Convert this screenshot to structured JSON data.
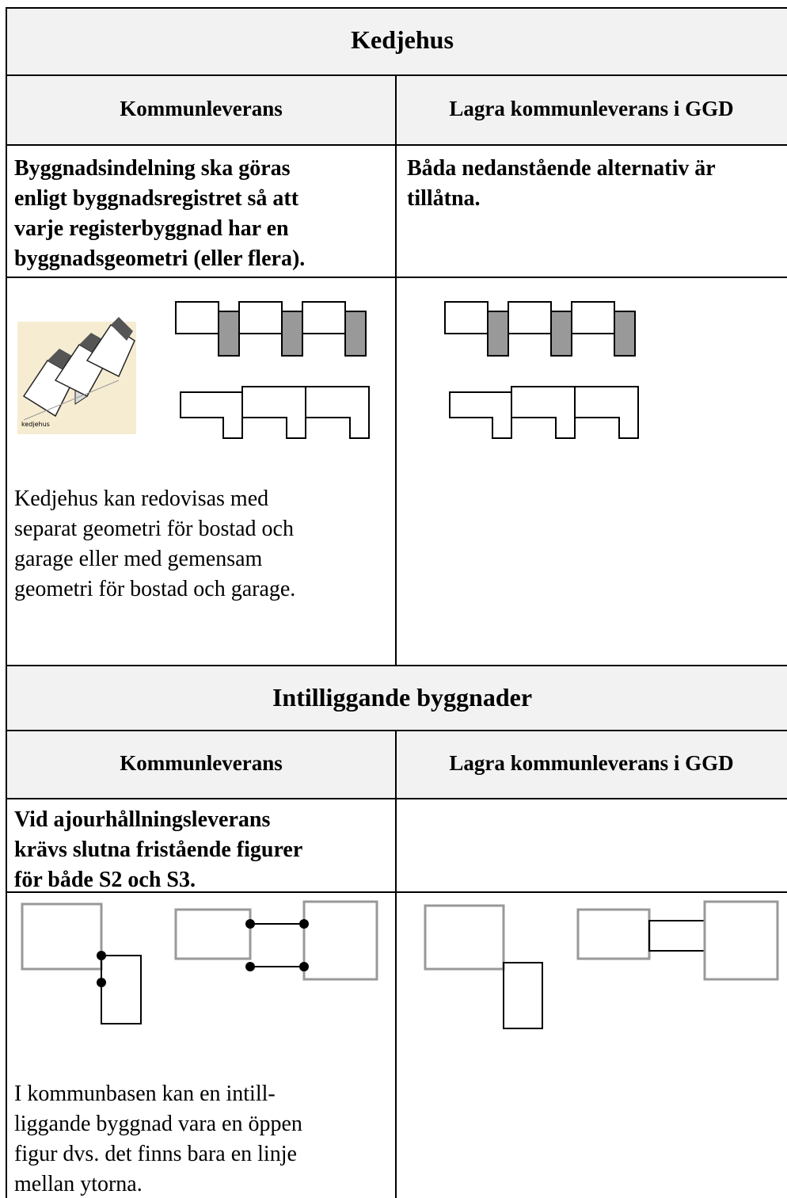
{
  "sections": [
    {
      "title": "Kedjehus",
      "columns": [
        "Kommunleverans",
        "Lagra kommunleverans i GGD"
      ],
      "rule_left": [
        "Byggnadsindelning ska göras",
        "enligt byggnadsregistret så att",
        "varje registerbyggnad har en",
        "byggnadsgeometri (eller flera)."
      ],
      "rule_right": [
        "Båda nedanstående alternativ är",
        "tillåtna."
      ],
      "image_caption": "kedjehus",
      "note": [
        "Kedjehus kan redovisas med",
        "separat geometri för bostad och",
        "garage eller med gemensam",
        "geometri för bostad och garage."
      ]
    },
    {
      "title": "Intilliggande byggnader",
      "columns": [
        "Kommunleverans",
        "Lagra kommunleverans i GGD"
      ],
      "rule_left": [
        "Vid ajourhållningsleverans",
        "krävs slutna fristående figurer",
        "för både S2 och S3."
      ],
      "note": [
        "I kommunbasen kan en intill-",
        "liggande byggnad vara en öppen",
        "figur dvs. det finns bara en linje",
        "mellan ytorna."
      ]
    }
  ]
}
